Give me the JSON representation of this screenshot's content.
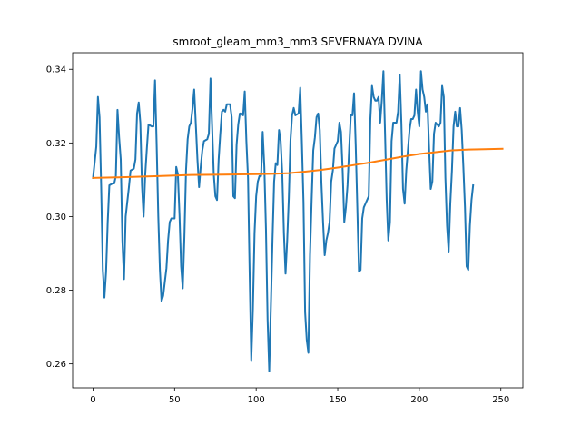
{
  "chart_data": {
    "type": "line",
    "title": "smroot_gleam_mm3_mm3 SEVERNAYA DVINA",
    "xlabel": "",
    "ylabel": "",
    "xlim": [
      -12.5,
      263.5
    ],
    "ylim": [
      0.2535,
      0.3445
    ],
    "x_ticks": [
      0,
      50,
      100,
      150,
      200,
      250
    ],
    "y_ticks": [
      0.26,
      0.28,
      0.3,
      0.32,
      0.34
    ],
    "x_tick_labels": [
      "0",
      "50",
      "100",
      "150",
      "200",
      "250"
    ],
    "y_tick_labels": [
      "0.26",
      "0.28",
      "0.30",
      "0.32",
      "0.34"
    ],
    "grid": false,
    "legend": "none",
    "series": [
      {
        "color": "#1f77b4",
        "points": [
          [
            0,
            0.3105
          ],
          [
            2,
            0.319
          ],
          [
            3,
            0.3325
          ],
          [
            4,
            0.327
          ],
          [
            5,
            0.308
          ],
          [
            6,
            0.2855
          ],
          [
            7,
            0.278
          ],
          [
            8,
            0.285
          ],
          [
            9,
            0.2985
          ],
          [
            10,
            0.3085
          ],
          [
            12,
            0.309
          ],
          [
            13,
            0.309
          ],
          [
            14,
            0.311
          ],
          [
            15,
            0.329
          ],
          [
            16,
            0.3215
          ],
          [
            17,
            0.3155
          ],
          [
            18,
            0.2935
          ],
          [
            19,
            0.283
          ],
          [
            20,
            0.3
          ],
          [
            22,
            0.308
          ],
          [
            23,
            0.3125
          ],
          [
            25,
            0.313
          ],
          [
            26,
            0.3155
          ],
          [
            27,
            0.328
          ],
          [
            28,
            0.331
          ],
          [
            29,
            0.3255
          ],
          [
            30,
            0.3085
          ],
          [
            31,
            0.3
          ],
          [
            32,
            0.3115
          ],
          [
            33,
            0.3185
          ],
          [
            34,
            0.325
          ],
          [
            36,
            0.3245
          ],
          [
            37,
            0.3245
          ],
          [
            38,
            0.337
          ],
          [
            39,
            0.3195
          ],
          [
            40,
            0.3
          ],
          [
            41,
            0.2855
          ],
          [
            42,
            0.277
          ],
          [
            43,
            0.2785
          ],
          [
            45,
            0.286
          ],
          [
            46,
            0.2935
          ],
          [
            47,
            0.2985
          ],
          [
            48,
            0.2995
          ],
          [
            50,
            0.2995
          ],
          [
            51,
            0.3135
          ],
          [
            52,
            0.3115
          ],
          [
            53,
            0.3005
          ],
          [
            54,
            0.2865
          ],
          [
            55,
            0.2805
          ],
          [
            56,
            0.2945
          ],
          [
            57,
            0.3125
          ],
          [
            58,
            0.321
          ],
          [
            59,
            0.3245
          ],
          [
            60,
            0.3255
          ],
          [
            61,
            0.3295
          ],
          [
            62,
            0.3345
          ],
          [
            63,
            0.325
          ],
          [
            64,
            0.3155
          ],
          [
            65,
            0.308
          ],
          [
            66,
            0.3135
          ],
          [
            67,
            0.318
          ],
          [
            68,
            0.3205
          ],
          [
            70,
            0.321
          ],
          [
            71,
            0.3225
          ],
          [
            72,
            0.3375
          ],
          [
            73,
            0.3245
          ],
          [
            74,
            0.3115
          ],
          [
            75,
            0.3055
          ],
          [
            76,
            0.3045
          ],
          [
            77,
            0.3155
          ],
          [
            78,
            0.3225
          ],
          [
            79,
            0.3285
          ],
          [
            80,
            0.329
          ],
          [
            81,
            0.3285
          ],
          [
            82,
            0.3305
          ],
          [
            84,
            0.3305
          ],
          [
            85,
            0.327
          ],
          [
            86,
            0.3055
          ],
          [
            87,
            0.305
          ],
          [
            88,
            0.3195
          ],
          [
            89,
            0.325
          ],
          [
            90,
            0.328
          ],
          [
            91,
            0.328
          ],
          [
            92,
            0.3275
          ],
          [
            93,
            0.334
          ],
          [
            94,
            0.3205
          ],
          [
            95,
            0.3105
          ],
          [
            96,
            0.2845
          ],
          [
            97,
            0.261
          ],
          [
            98,
            0.275
          ],
          [
            99,
            0.2955
          ],
          [
            100,
            0.3055
          ],
          [
            101,
            0.3095
          ],
          [
            102,
            0.311
          ],
          [
            103,
            0.311
          ],
          [
            104,
            0.323
          ],
          [
            105,
            0.3135
          ],
          [
            106,
            0.2965
          ],
          [
            107,
            0.272
          ],
          [
            108,
            0.258
          ],
          [
            109,
            0.2755
          ],
          [
            110,
            0.2935
          ],
          [
            111,
            0.3095
          ],
          [
            112,
            0.3145
          ],
          [
            113,
            0.314
          ],
          [
            114,
            0.3235
          ],
          [
            115,
            0.3205
          ],
          [
            116,
            0.3115
          ],
          [
            117,
            0.2955
          ],
          [
            118,
            0.2845
          ],
          [
            119,
            0.2935
          ],
          [
            120,
            0.305
          ],
          [
            121,
            0.3205
          ],
          [
            122,
            0.3275
          ],
          [
            123,
            0.3295
          ],
          [
            124,
            0.3275
          ],
          [
            126,
            0.328
          ],
          [
            127,
            0.335
          ],
          [
            128,
            0.3205
          ],
          [
            129,
            0.304
          ],
          [
            130,
            0.274
          ],
          [
            131,
            0.2665
          ],
          [
            132,
            0.263
          ],
          [
            133,
            0.2895
          ],
          [
            134,
            0.3045
          ],
          [
            135,
            0.318
          ],
          [
            136,
            0.3215
          ],
          [
            137,
            0.327
          ],
          [
            138,
            0.328
          ],
          [
            139,
            0.3235
          ],
          [
            140,
            0.309
          ],
          [
            141,
            0.2985
          ],
          [
            142,
            0.2895
          ],
          [
            143,
            0.2935
          ],
          [
            144,
            0.2955
          ],
          [
            145,
            0.2985
          ],
          [
            146,
            0.3095
          ],
          [
            147,
            0.3125
          ],
          [
            148,
            0.3185
          ],
          [
            149,
            0.3195
          ],
          [
            150,
            0.3205
          ],
          [
            151,
            0.3255
          ],
          [
            152,
            0.323
          ],
          [
            153,
            0.3125
          ],
          [
            154,
            0.2985
          ],
          [
            155,
            0.3025
          ],
          [
            156,
            0.3085
          ],
          [
            157,
            0.3185
          ],
          [
            158,
            0.3275
          ],
          [
            159,
            0.3275
          ],
          [
            160,
            0.3335
          ],
          [
            161,
            0.3195
          ],
          [
            162,
            0.3025
          ],
          [
            163,
            0.285
          ],
          [
            164,
            0.2855
          ],
          [
            165,
            0.2995
          ],
          [
            166,
            0.3025
          ],
          [
            167,
            0.3035
          ],
          [
            168,
            0.3045
          ],
          [
            169,
            0.3055
          ],
          [
            170,
            0.3265
          ],
          [
            171,
            0.3355
          ],
          [
            172,
            0.3325
          ],
          [
            173,
            0.3315
          ],
          [
            174,
            0.3315
          ],
          [
            175,
            0.3325
          ],
          [
            176,
            0.3255
          ],
          [
            177,
            0.3315
          ],
          [
            178,
            0.3395
          ],
          [
            179,
            0.3225
          ],
          [
            180,
            0.3045
          ],
          [
            181,
            0.2935
          ],
          [
            182,
            0.2985
          ],
          [
            183,
            0.3205
          ],
          [
            184,
            0.3255
          ],
          [
            185,
            0.3255
          ],
          [
            186,
            0.3255
          ],
          [
            187,
            0.3285
          ],
          [
            188,
            0.3385
          ],
          [
            189,
            0.3255
          ],
          [
            190,
            0.3075
          ],
          [
            191,
            0.3035
          ],
          [
            192,
            0.3125
          ],
          [
            193,
            0.318
          ],
          [
            194,
            0.3235
          ],
          [
            195,
            0.3265
          ],
          [
            196,
            0.3265
          ],
          [
            197,
            0.3275
          ],
          [
            198,
            0.3345
          ],
          [
            199,
            0.3285
          ],
          [
            200,
            0.3245
          ],
          [
            201,
            0.3395
          ],
          [
            202,
            0.3345
          ],
          [
            203,
            0.3325
          ],
          [
            204,
            0.3285
          ],
          [
            205,
            0.3305
          ],
          [
            206,
            0.3185
          ],
          [
            207,
            0.3075
          ],
          [
            208,
            0.3095
          ],
          [
            209,
            0.3225
          ],
          [
            210,
            0.3255
          ],
          [
            212,
            0.3245
          ],
          [
            213,
            0.3255
          ],
          [
            214,
            0.3355
          ],
          [
            215,
            0.3325
          ],
          [
            216,
            0.3105
          ],
          [
            217,
            0.2975
          ],
          [
            218,
            0.2905
          ],
          [
            219,
            0.3035
          ],
          [
            220,
            0.3125
          ],
          [
            221,
            0.3245
          ],
          [
            222,
            0.3285
          ],
          [
            223,
            0.3245
          ],
          [
            224,
            0.3245
          ],
          [
            225,
            0.3295
          ],
          [
            226,
            0.3235
          ],
          [
            227,
            0.3135
          ],
          [
            228,
            0.3025
          ],
          [
            229,
            0.2865
          ],
          [
            230,
            0.2855
          ],
          [
            231,
            0.2975
          ],
          [
            232,
            0.3045
          ],
          [
            233,
            0.3085
          ]
        ]
      },
      {
        "color": "#ff7f0e",
        "points": [
          [
            0,
            0.3105
          ],
          [
            20,
            0.3107
          ],
          [
            40,
            0.311
          ],
          [
            60,
            0.3113
          ],
          [
            80,
            0.3114
          ],
          [
            100,
            0.3115
          ],
          [
            110,
            0.3116
          ],
          [
            120,
            0.3118
          ],
          [
            130,
            0.3122
          ],
          [
            140,
            0.3127
          ],
          [
            150,
            0.3133
          ],
          [
            160,
            0.314
          ],
          [
            170,
            0.3147
          ],
          [
            180,
            0.3155
          ],
          [
            190,
            0.3163
          ],
          [
            200,
            0.317
          ],
          [
            210,
            0.3175
          ],
          [
            220,
            0.318
          ],
          [
            230,
            0.3182
          ],
          [
            240,
            0.3183
          ],
          [
            251,
            0.3184
          ]
        ]
      }
    ]
  }
}
